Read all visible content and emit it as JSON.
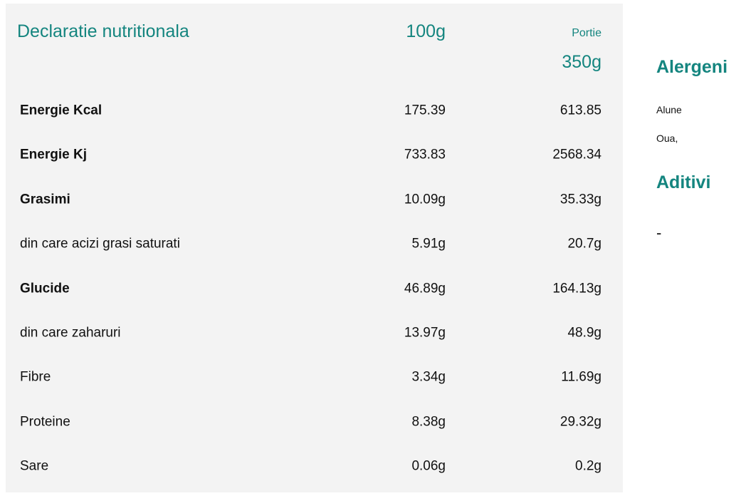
{
  "nutrition": {
    "title": "Declaratie nutritionala",
    "col_100": "100g",
    "portion_label": "Portie",
    "portion_value": "350g",
    "rows": [
      {
        "name": "Energie Kcal",
        "per100": "175.39",
        "portion": "613.85",
        "bold": true
      },
      {
        "name": "Energie Kj",
        "per100": "733.83",
        "portion": "2568.34",
        "bold": true
      },
      {
        "name": "Grasimi",
        "per100": "10.09g",
        "portion": "35.33g",
        "bold": true
      },
      {
        "name": "din care acizi grasi saturati",
        "per100": "5.91g",
        "portion": "20.7g",
        "bold": false
      },
      {
        "name": "Glucide",
        "per100": "46.89g",
        "portion": "164.13g",
        "bold": true
      },
      {
        "name": "din care zaharuri",
        "per100": "13.97g",
        "portion": "48.9g",
        "bold": false
      },
      {
        "name": "Fibre",
        "per100": "3.34g",
        "portion": "11.69g",
        "bold": false
      },
      {
        "name": "Proteine",
        "per100": "8.38g",
        "portion": "29.32g",
        "bold": false
      },
      {
        "name": "Sare",
        "per100": "0.06g",
        "portion": "0.2g",
        "bold": false
      }
    ]
  },
  "allergens": {
    "title": "Alergeni",
    "items": [
      "Alune",
      "Oua,"
    ]
  },
  "additives": {
    "title": "Aditivi",
    "items": [
      "-"
    ]
  }
}
